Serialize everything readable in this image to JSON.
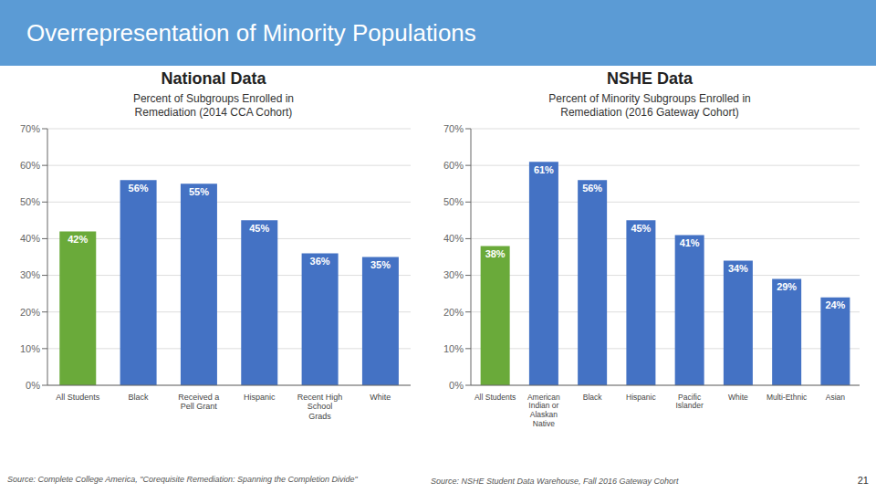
{
  "title": "Overrepresentation of Minority Populations",
  "chart_data": [
    {
      "type": "bar",
      "title": "National Data",
      "subtitle": "Percent of Subgroups Enrolled in\nRemediation (2014 CCA Cohort)",
      "categories": [
        "All Students",
        "Black",
        "Received a\nPell Grant",
        "Hispanic",
        "Recent High\nSchool\nGrads",
        "White"
      ],
      "values": [
        42,
        56,
        55,
        45,
        36,
        35
      ],
      "value_labels": [
        "42%",
        "56%",
        "55%",
        "45%",
        "36%",
        "35%"
      ],
      "colors": [
        "#6aaa3a",
        "#4472c4",
        "#4472c4",
        "#4472c4",
        "#4472c4",
        "#4472c4"
      ],
      "ylim": [
        0,
        70
      ],
      "yticks": [
        {
          "value": 0,
          "label": "0%"
        },
        {
          "value": 10,
          "label": "10%"
        },
        {
          "value": 20,
          "label": "20%"
        },
        {
          "value": 30,
          "label": "30%"
        },
        {
          "value": 40,
          "label": "40%"
        },
        {
          "value": 50,
          "label": "50%"
        },
        {
          "value": 60,
          "label": "60%"
        },
        {
          "value": 70,
          "label": "70%"
        }
      ],
      "grid": true,
      "data_labels": true,
      "annotations": [
        "Source: Complete College America, \"Corequisite Remediation: Spanning the Completion Divide\""
      ]
    },
    {
      "type": "bar",
      "title": "NSHE Data",
      "subtitle": "Percent of Minority Subgroups Enrolled in\nRemediation (2016 Gateway Cohort)",
      "categories": [
        "All Students",
        "American\nIndian or\nAlaskan\nNative",
        "Black",
        "Hispanic",
        "Pacific\nIslander",
        "White",
        "Multi-Ethnic",
        "Asian"
      ],
      "values": [
        38,
        61,
        56,
        45,
        41,
        34,
        29,
        24
      ],
      "value_labels": [
        "38%",
        "61%",
        "56%",
        "45%",
        "41%",
        "34%",
        "29%",
        "24%"
      ],
      "colors": [
        "#6aaa3a",
        "#4472c4",
        "#4472c4",
        "#4472c4",
        "#4472c4",
        "#4472c4",
        "#4472c4",
        "#4472c4"
      ],
      "ylim": [
        0,
        70
      ],
      "yticks": [
        {
          "value": 0,
          "label": "0%"
        },
        {
          "value": 10,
          "label": "10%"
        },
        {
          "value": 20,
          "label": "20%"
        },
        {
          "value": 30,
          "label": "30%"
        },
        {
          "value": 40,
          "label": "40%"
        },
        {
          "value": 50,
          "label": "50%"
        },
        {
          "value": 60,
          "label": "60%"
        },
        {
          "value": 70,
          "label": "70%"
        }
      ],
      "grid": true,
      "data_labels": true,
      "annotations": [
        "Source: NSHE Student Data Warehouse, Fall 2016 Gateway Cohort",
        "21"
      ]
    }
  ]
}
